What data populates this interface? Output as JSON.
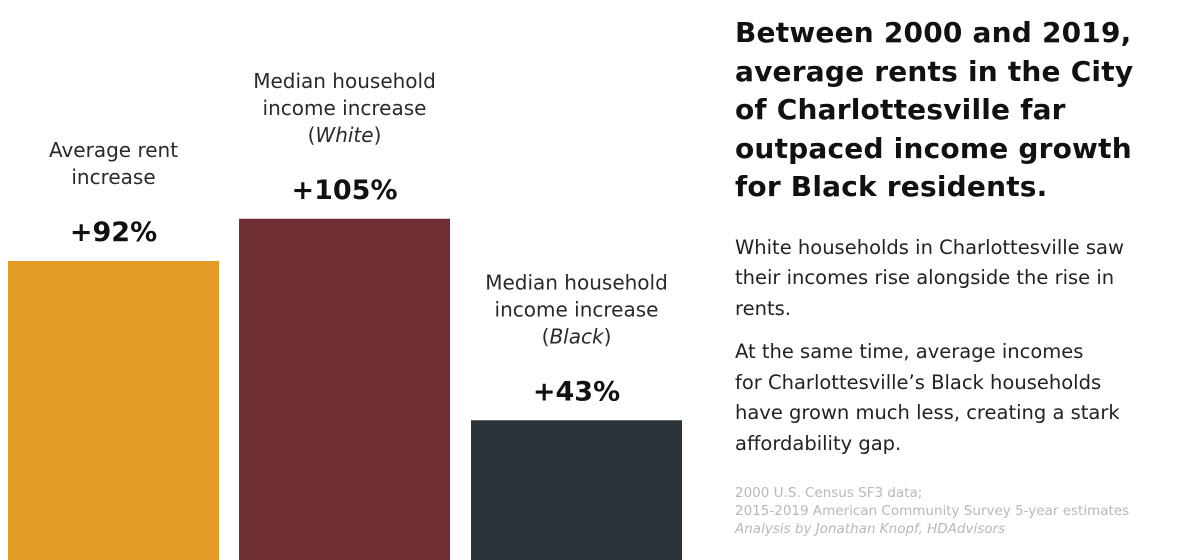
{
  "chart_data": {
    "type": "bar",
    "categories": [
      "Average rent increase",
      "Median household income increase (White)",
      "Median household income increase (Black)"
    ],
    "values": [
      92,
      105,
      43
    ],
    "value_labels": [
      "+92%",
      "+105%",
      "+43%"
    ],
    "colors": [
      "#E49B24",
      "#702F32",
      "#2D333B"
    ],
    "label_lines": [
      [
        {
          "text": "Average rent",
          "italic": false
        },
        {
          "text": "increase",
          "italic": false
        }
      ],
      [
        {
          "text": "Median household",
          "italic": false
        },
        {
          "text": "income increase",
          "italic": false
        },
        {
          "text": "(",
          "italic": false,
          "inline": [
            {
              "text": "(",
              "italic": false
            },
            {
              "text": "White",
              "italic": true
            },
            {
              "text": ")",
              "italic": false
            }
          ]
        }
      ],
      [
        {
          "text": "Median household",
          "italic": false
        },
        {
          "text": "income increase",
          "italic": false
        },
        {
          "text": "(",
          "italic": false,
          "inline": [
            {
              "text": "(",
              "italic": false
            },
            {
              "text": "Black",
              "italic": true
            },
            {
              "text": ")",
              "italic": false
            }
          ]
        }
      ]
    ],
    "units": "%",
    "ylim": [
      0,
      138
    ]
  },
  "panel": {
    "headline_lines": [
      "Between 2000 and 2019,",
      "average rents in the City",
      "of Charlottesville far",
      "outpaced income growth",
      "for Black residents."
    ],
    "paragraph1_lines": [
      "White households in Charlottesville saw",
      "their incomes rise alongside the rise in",
      "rents."
    ],
    "paragraph2_lines": [
      "At the same time, average incomes",
      "for Charlottesville’s Black households",
      "have grown much less, creating a stark",
      "affordability gap."
    ],
    "sources": {
      "line1": "2000 U.S. Census SF3 data;",
      "line2": "2015-2019 American Community Survey 5-year estimates",
      "credit": "Analysis by Jonathan Knopf, HDAdvisors"
    }
  }
}
